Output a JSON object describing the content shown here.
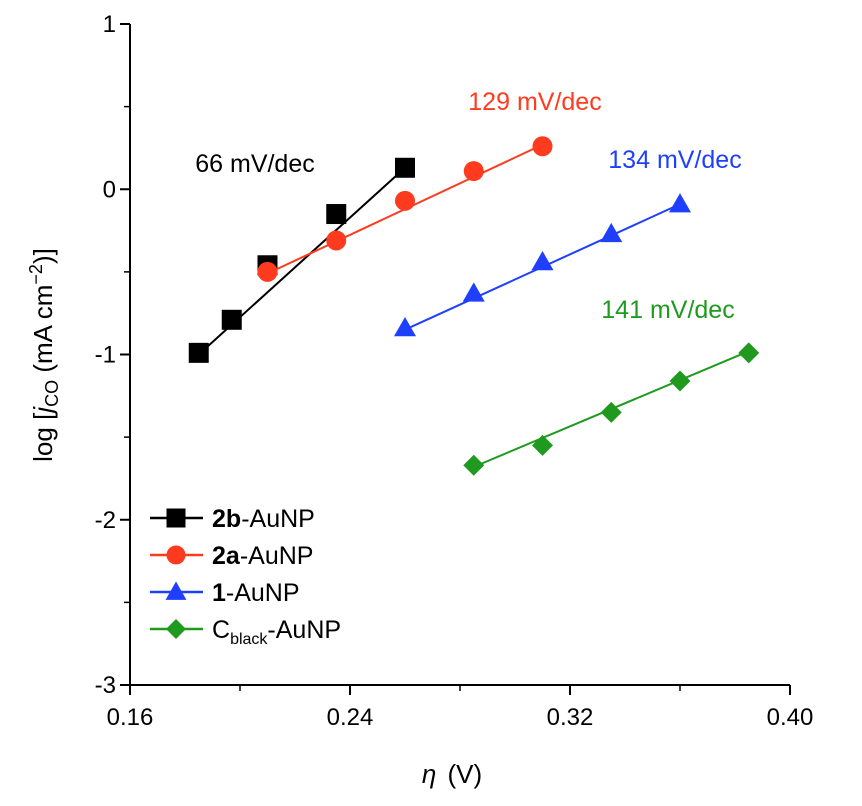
{
  "chart_data": {
    "type": "line",
    "xlabel_symbol": "η",
    "xlabel_unit": "(V)",
    "ylabel_main": "log [",
    "ylabel_j": "j",
    "ylabel_sub": "CO",
    "ylabel_rest": " (mA cm",
    "ylabel_sup": "−2",
    "ylabel_close": ")]",
    "xlim": [
      0.16,
      0.4
    ],
    "ylim": [
      -3,
      1
    ],
    "xticks": [
      0.16,
      0.24,
      0.32,
      0.4
    ],
    "xtick_labels": [
      "0.16",
      "0.24",
      "0.32",
      "0.40"
    ],
    "yticks": [
      1,
      0,
      -1,
      -2,
      -3
    ],
    "ytick_labels": [
      "1",
      "0",
      "-1",
      "-2",
      "-3"
    ],
    "grid": false,
    "legend_position": "bottom-left",
    "series": [
      {
        "name_bold": "2b",
        "name_rest": "-AuNP",
        "marker": "square",
        "color": "#000000",
        "slope_label": "66 mV/dec",
        "x": [
          0.185,
          0.197,
          0.21,
          0.235,
          0.26
        ],
        "y": [
          -0.99,
          -0.79,
          -0.46,
          -0.15,
          0.13
        ],
        "fit": [
          [
            0.185,
            -1.0
          ],
          [
            0.26,
            0.13
          ]
        ]
      },
      {
        "name_bold": "2a",
        "name_rest": "-AuNP",
        "marker": "circle",
        "color": "#ff3b1f",
        "slope_label": "129 mV/dec",
        "x": [
          0.21,
          0.235,
          0.26,
          0.285,
          0.31
        ],
        "y": [
          -0.5,
          -0.31,
          -0.07,
          0.11,
          0.26
        ],
        "fit": [
          [
            0.21,
            -0.51
          ],
          [
            0.31,
            0.27
          ]
        ]
      },
      {
        "name_bold": "1",
        "name_rest": "-AuNP",
        "marker": "triangle",
        "color": "#1f3fff",
        "slope_label": "134 mV/dec",
        "x": [
          0.26,
          0.285,
          0.31,
          0.335,
          0.36
        ],
        "y": [
          -0.84,
          -0.63,
          -0.44,
          -0.27,
          -0.09
        ],
        "fit": [
          [
            0.26,
            -0.85
          ],
          [
            0.36,
            -0.09
          ]
        ]
      },
      {
        "name_main": "C",
        "name_sub": "black",
        "name_rest": "-AuNP",
        "marker": "diamond",
        "color": "#1f9a1f",
        "slope_label": "141 mV/dec",
        "x": [
          0.285,
          0.31,
          0.335,
          0.36,
          0.385
        ],
        "y": [
          -1.67,
          -1.55,
          -1.35,
          -1.16,
          -0.99
        ],
        "fit": [
          [
            0.285,
            -1.68
          ],
          [
            0.385,
            -0.98
          ]
        ]
      }
    ]
  }
}
